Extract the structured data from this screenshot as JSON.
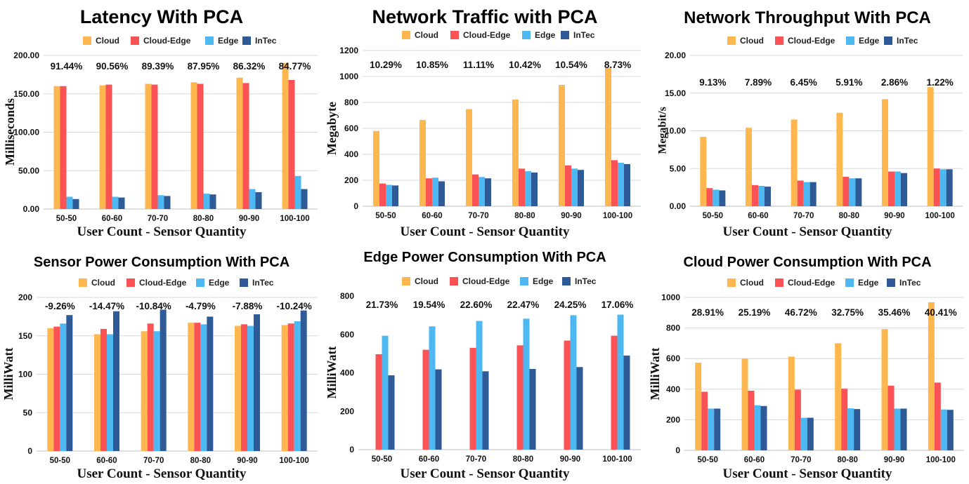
{
  "series_colors": {
    "Cloud": "#FDB74E",
    "Cloud-Edge": "#FB5255",
    "Edge": "#4DB8F2",
    "InTec": "#2E5B97"
  },
  "chart_data": [
    {
      "type": "bar",
      "title": "Latency With PCA",
      "xlabel": "User Count - Sensor Quantity",
      "ylabel": "Milliseconds",
      "ylim": [
        0,
        200
      ],
      "yticks": [
        "0.00",
        "50.00",
        "100.00",
        "150.00",
        "200.00"
      ],
      "ytick_values": [
        0,
        50,
        100,
        150,
        200
      ],
      "categories": [
        "50-50",
        "60-60",
        "70-70",
        "80-80",
        "90-90",
        "100-100"
      ],
      "series": [
        {
          "name": "Cloud",
          "values": [
            160,
            161,
            163,
            165,
            171,
            190
          ]
        },
        {
          "name": "Cloud-Edge",
          "values": [
            160,
            162,
            162,
            163,
            164,
            168
          ]
        },
        {
          "name": "Edge",
          "values": [
            16,
            16,
            18,
            20,
            26,
            43
          ]
        },
        {
          "name": "InTec",
          "values": [
            13,
            15,
            17,
            19,
            22,
            26
          ]
        }
      ],
      "annotations": [
        "91.44%",
        "90.56%",
        "89.39%",
        "87.95%",
        "86.32%",
        "84.77%"
      ],
      "legend": "top",
      "grid": true
    },
    {
      "type": "bar",
      "title": "Network Traffic with PCA",
      "xlabel": "User Count - Sensor Quantity",
      "ylabel": "Megabyte",
      "ylim": [
        0,
        1200
      ],
      "yticks": [
        "0",
        "200",
        "400",
        "600",
        "800",
        "1000",
        "1200"
      ],
      "ytick_values": [
        0,
        200,
        400,
        600,
        800,
        1000,
        1200
      ],
      "categories": [
        "50-50",
        "60-60",
        "70-70",
        "80-80",
        "90-90",
        "100-100"
      ],
      "series": [
        {
          "name": "Cloud",
          "values": [
            580,
            665,
            748,
            822,
            935,
            1065
          ]
        },
        {
          "name": "Cloud-Edge",
          "values": [
            175,
            215,
            245,
            290,
            315,
            355
          ]
        },
        {
          "name": "Edge",
          "values": [
            165,
            220,
            225,
            270,
            290,
            335
          ]
        },
        {
          "name": "InTec",
          "values": [
            160,
            192,
            215,
            260,
            280,
            325
          ]
        }
      ],
      "annotations": [
        "10.29%",
        "10.85%",
        "11.11%",
        "10.42%",
        "10.54%",
        "8.73%"
      ],
      "legend": "top",
      "grid": true
    },
    {
      "type": "bar",
      "title": "Network Throughput With PCA",
      "xlabel": "User Count - Sensor Quantity",
      "ylabel": "Megabit/s",
      "ylim": [
        0,
        20
      ],
      "yticks": [
        "0.00",
        "5.00",
        "10.00",
        "15.00",
        "20.00"
      ],
      "ytick_values": [
        0,
        5,
        10,
        15,
        20
      ],
      "categories": [
        "50-50",
        "60-60",
        "70-70",
        "80-80",
        "90-90",
        "100-100"
      ],
      "series": [
        {
          "name": "Cloud",
          "values": [
            9.2,
            10.4,
            11.5,
            12.4,
            14.2,
            15.8
          ]
        },
        {
          "name": "Cloud-Edge",
          "values": [
            2.4,
            2.8,
            3.4,
            3.9,
            4.6,
            5.0
          ]
        },
        {
          "name": "Edge",
          "values": [
            2.2,
            2.7,
            3.2,
            3.7,
            4.6,
            4.9
          ]
        },
        {
          "name": "InTec",
          "values": [
            2.1,
            2.6,
            3.2,
            3.7,
            4.4,
            4.9
          ]
        }
      ],
      "annotations": [
        "9.13%",
        "7.89%",
        "6.45%",
        "5.91%",
        "2.86%",
        "1.22%"
      ],
      "legend": "top",
      "grid": true
    },
    {
      "type": "bar",
      "title": "Sensor Power Consumption With PCA",
      "xlabel": "User Count - Sensor Quantity",
      "ylabel": "MilliWatt",
      "ylim": [
        0,
        200
      ],
      "yticks": [
        "0",
        "50",
        "100",
        "150",
        "200"
      ],
      "ytick_values": [
        0,
        50,
        100,
        150,
        200
      ],
      "categories": [
        "50-50",
        "60-60",
        "70-70",
        "80-80",
        "90-90",
        "100-100"
      ],
      "series": [
        {
          "name": "Cloud",
          "values": [
            160,
            152,
            156,
            167,
            163,
            164
          ]
        },
        {
          "name": "Cloud-Edge",
          "values": [
            162,
            159,
            166,
            167,
            165,
            166
          ]
        },
        {
          "name": "Edge",
          "values": [
            166,
            152,
            156,
            165,
            163,
            169
          ]
        },
        {
          "name": "InTec",
          "values": [
            177,
            182,
            184,
            175,
            178,
            183
          ]
        }
      ],
      "annotations": [
        "-9.26%",
        "-14.47%",
        "-10.84%",
        "-4.79%",
        "-7.88%",
        "-10.24%"
      ],
      "legend": "top",
      "grid": true
    },
    {
      "type": "bar",
      "title": "Edge Power Consumption With PCA",
      "xlabel": "User Count - Sensor Quantity",
      "ylabel": "MilliWatt",
      "ylim": [
        0,
        800
      ],
      "yticks": [
        "0",
        "200",
        "400",
        "600",
        "800"
      ],
      "ytick_values": [
        0,
        200,
        400,
        600,
        800
      ],
      "categories": [
        "50-50",
        "60-60",
        "70-70",
        "80-80",
        "90-90",
        "100-100"
      ],
      "series": [
        {
          "name": "Cloud",
          "values": [
            0,
            0,
            0,
            0,
            0,
            0
          ]
        },
        {
          "name": "Cloud-Edge",
          "values": [
            497,
            520,
            530,
            543,
            568,
            593
          ]
        },
        {
          "name": "Edge",
          "values": [
            593,
            642,
            670,
            682,
            700,
            703
          ]
        },
        {
          "name": "InTec",
          "values": [
            387,
            418,
            408,
            420,
            430,
            490
          ]
        }
      ],
      "annotations": [
        "21.73%",
        "19.54%",
        "22.60%",
        "22.47%",
        "24.25%",
        "17.06%"
      ],
      "legend": "top",
      "grid": false
    },
    {
      "type": "bar",
      "title": "Cloud Power Consumption With PCA",
      "xlabel": "User Count - Sensor Quantity",
      "ylabel": "MilliWatt",
      "ylim": [
        0,
        1000
      ],
      "yticks": [
        "0",
        "200",
        "400",
        "600",
        "800",
        "1000"
      ],
      "ytick_values": [
        0,
        200,
        400,
        600,
        800,
        1000
      ],
      "categories": [
        "50-50",
        "60-60",
        "70-70",
        "80-80",
        "90-90",
        "100-100"
      ],
      "series": [
        {
          "name": "Cloud",
          "values": [
            573,
            600,
            613,
            700,
            793,
            968
          ]
        },
        {
          "name": "Cloud-Edge",
          "values": [
            383,
            390,
            397,
            403,
            423,
            443
          ]
        },
        {
          "name": "Edge",
          "values": [
            273,
            295,
            213,
            275,
            273,
            267
          ]
        },
        {
          "name": "InTec",
          "values": [
            273,
            290,
            213,
            270,
            273,
            265
          ]
        }
      ],
      "annotations": [
        "28.91%",
        "25.19%",
        "46.72%",
        "32.75%",
        "35.46%",
        "40.41%"
      ],
      "legend": "top",
      "grid": true
    }
  ]
}
